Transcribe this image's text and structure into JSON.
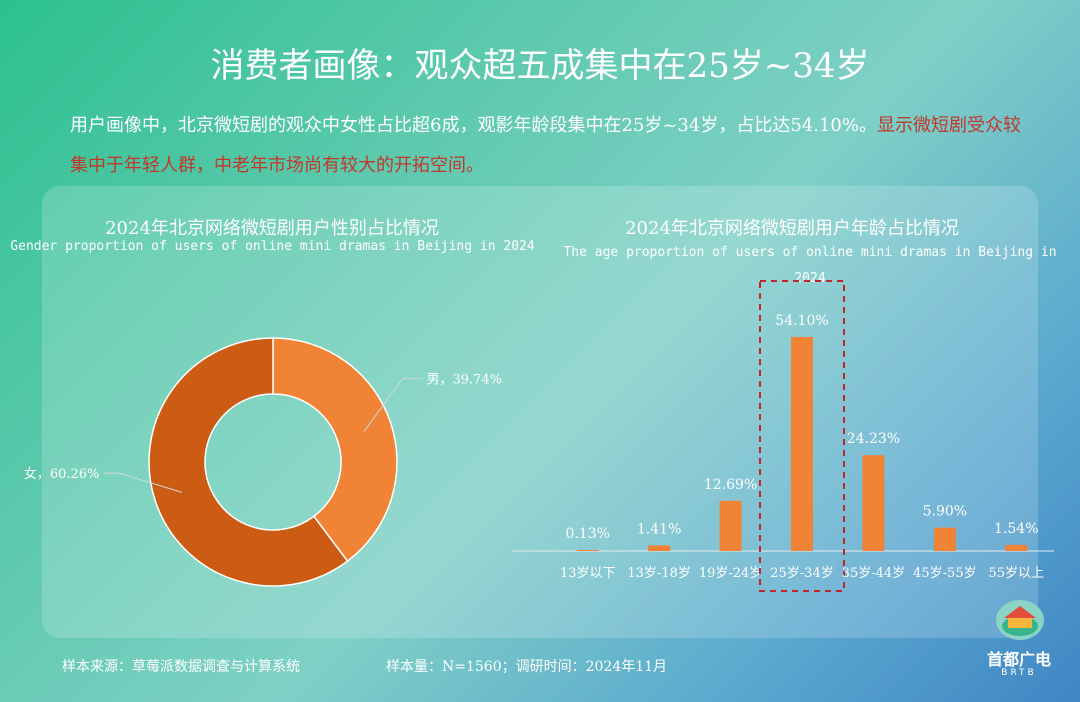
{
  "page": {
    "title": "消费者画像：观众超五成集中在25岁~34岁",
    "intro_main": "用户画像中，北京微短剧的观众中女性占比超6成，观影年龄段集中在25岁~34岁，占比达54.10%。",
    "intro_highlight": "显示微短剧受众较集中于年轻人群，中老年市场尚有较大的开拓空间。"
  },
  "footer": {
    "source": "样本来源：草莓派数据调查与计算系统",
    "sample": "样本量：N=1560；调研时间：2024年11月"
  },
  "logo": {
    "name": "首都广电",
    "en": "BRTB"
  },
  "colors": {
    "orange": "#f08336",
    "dark_orange": "#cc5c14",
    "highlight_red": "#c0392b",
    "dashed_box": "#c0272d"
  },
  "chart_data": [
    {
      "type": "pie",
      "title": "2024年北京网络微短剧用户性别占比情况",
      "subtitle": "Gender proportion of users of online mini dramas in Beijing in 2024",
      "donut": true,
      "slices": [
        {
          "label": "男",
          "value": 39.74,
          "display": "男，39.74%",
          "color": "#f08336"
        },
        {
          "label": "女",
          "value": 60.26,
          "display": "女，60.26%",
          "color": "#cc5c14"
        }
      ]
    },
    {
      "type": "bar",
      "title": "2024年北京网络微短剧用户年龄占比情况",
      "subtitle": "The age proportion of users of online mini dramas in Beijing in 2024",
      "categories": [
        "13岁以下",
        "13岁-18岁",
        "19岁-24岁",
        "25岁-34岁",
        "35岁-44岁",
        "45岁-55岁",
        "55岁以上"
      ],
      "values": [
        0.13,
        1.41,
        12.69,
        54.1,
        24.23,
        5.9,
        1.54
      ],
      "labels": [
        "0.13%",
        "1.41%",
        "12.69%",
        "54.10%",
        "24.23%",
        "5.90%",
        "1.54%"
      ],
      "highlight_category": "25岁-34岁",
      "ylim": [
        0,
        54.1
      ],
      "color": "#f08336"
    }
  ]
}
